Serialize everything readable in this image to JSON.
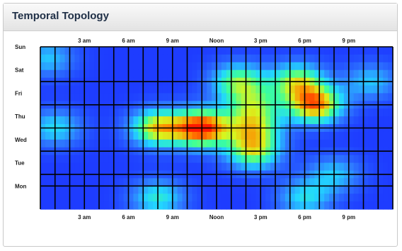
{
  "panel": {
    "title": "Temporal Topology"
  },
  "chart_data": {
    "type": "heatmap",
    "title": "Temporal Topology",
    "x_ticks": [
      "3 am",
      "6 am",
      "9 am",
      "Noon",
      "3 pm",
      "6 pm",
      "9 pm"
    ],
    "x_tick_hours": [
      3,
      6,
      9,
      12,
      15,
      18,
      21
    ],
    "y_labels": [
      "Sun",
      "Sat",
      "Fri",
      "Thu",
      "Wed",
      "Tue",
      "Mon"
    ],
    "xlim": [
      0,
      24
    ],
    "hotspots": [
      {
        "day": "Thu",
        "hour": 11.0,
        "intensity": 1.0
      },
      {
        "day": "Thu",
        "hour": 8.0,
        "intensity": 0.72
      },
      {
        "day": "Fri",
        "hour": 18.7,
        "intensity": 0.85
      },
      {
        "day": "Sat",
        "hour": 13.5,
        "intensity": 0.55
      },
      {
        "day": "Sat",
        "hour": 17.5,
        "intensity": 0.6
      },
      {
        "day": "Wed",
        "hour": 14.5,
        "intensity": 0.6
      },
      {
        "day": "Thu",
        "hour": 14.5,
        "intensity": 0.55
      },
      {
        "day": "Fri",
        "hour": 14.5,
        "intensity": 0.45
      },
      {
        "day": "Thu",
        "hour": 1.0,
        "intensity": 0.35
      },
      {
        "day": "Sun",
        "hour": 0.5,
        "intensity": 0.3
      },
      {
        "day": "Mon",
        "hour": 8.0,
        "intensity": 0.4
      },
      {
        "day": "Mon",
        "hour": 18.0,
        "intensity": 0.35
      },
      {
        "day": "Sat",
        "hour": 22.5,
        "intensity": 0.3
      },
      {
        "day": "Tue",
        "hour": 20.0,
        "intensity": 0.3
      }
    ],
    "colorscale": [
      "#1e3cff",
      "#2f7bff",
      "#22d7ff",
      "#3dff9a",
      "#d9f51e",
      "#ff8a00",
      "#ff1a00"
    ],
    "grid": true,
    "grid_color": "#000000"
  }
}
